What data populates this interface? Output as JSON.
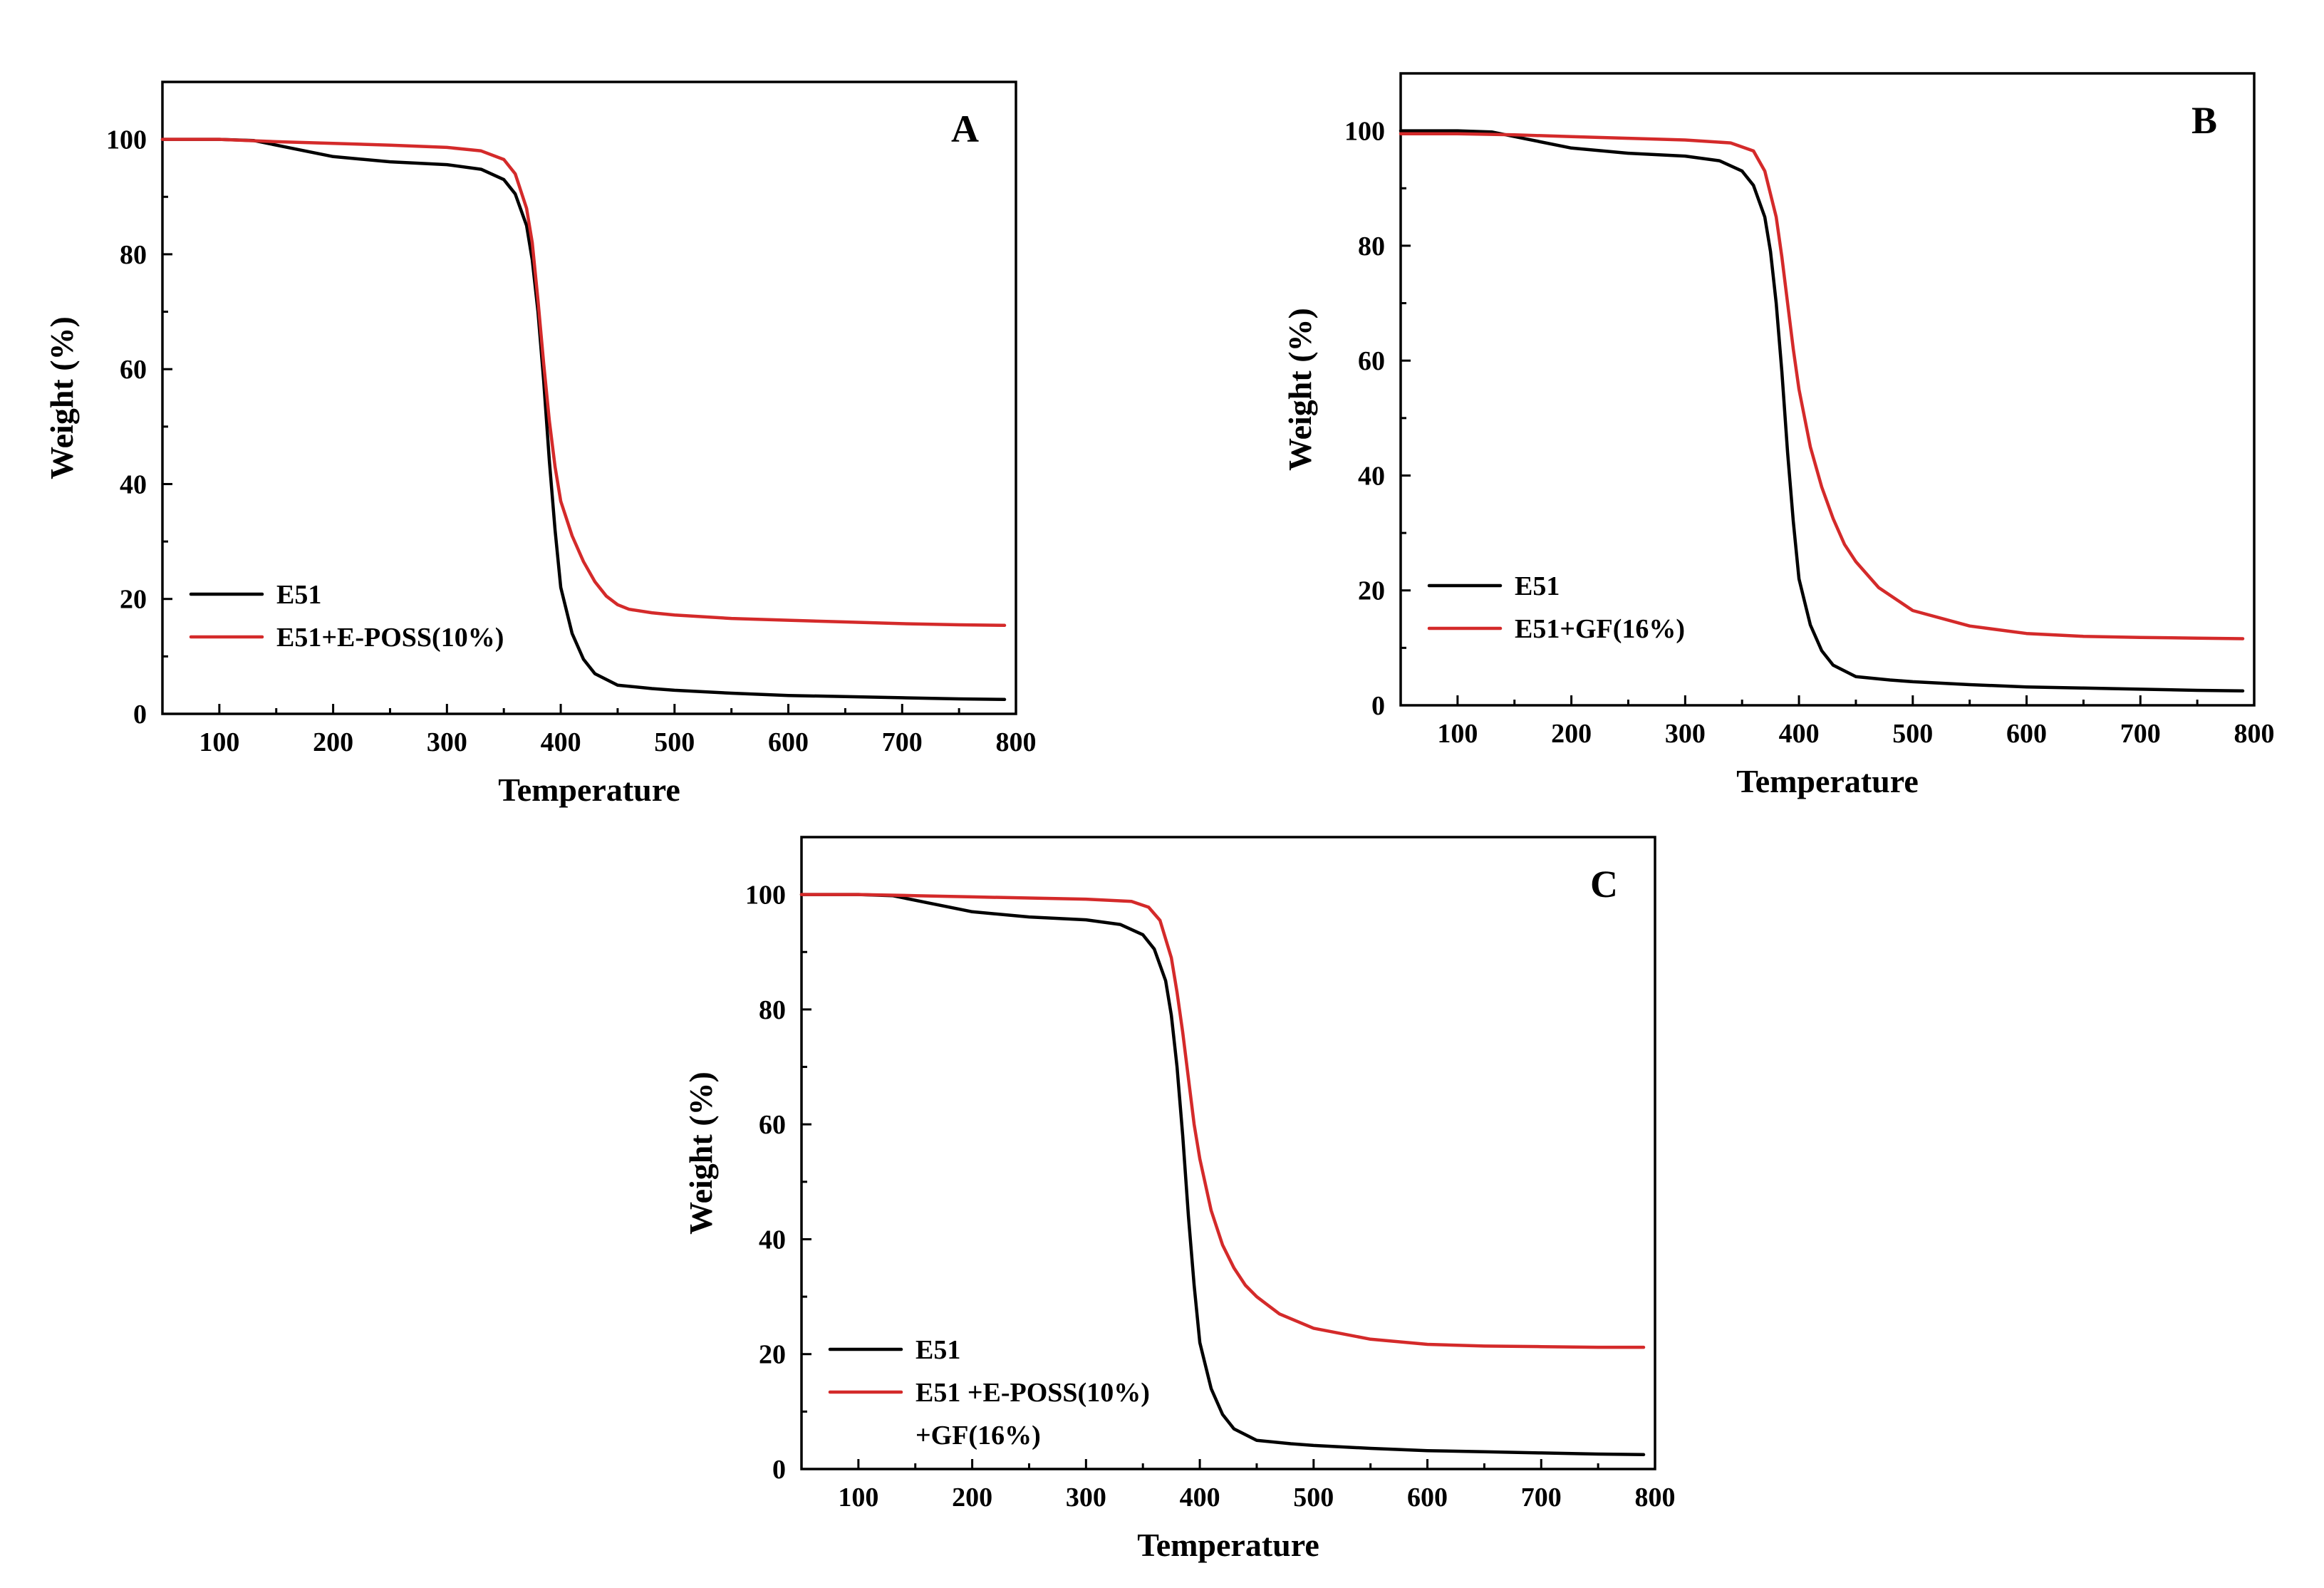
{
  "chart_data": [
    {
      "type": "line",
      "panel_label": "A",
      "xlabel": "Temperature",
      "ylabel": "Weight (%)",
      "xlim": [
        50,
        800
      ],
      "ylim": [
        0,
        110
      ],
      "xticks": [
        100,
        200,
        300,
        400,
        500,
        600,
        700,
        800
      ],
      "yticks": [
        0,
        20,
        40,
        60,
        80,
        100
      ],
      "legend_position": "bottom-left",
      "series": [
        {
          "name": "E51",
          "color": "#000000",
          "x": [
            50,
            100,
            130,
            160,
            200,
            250,
            300,
            330,
            350,
            360,
            370,
            375,
            380,
            385,
            390,
            395,
            400,
            410,
            420,
            430,
            450,
            480,
            500,
            550,
            600,
            650,
            700,
            750,
            790
          ],
          "y": [
            100,
            100,
            99.8,
            98.6,
            97,
            96.1,
            95.6,
            94.8,
            93,
            90.5,
            85,
            79,
            70,
            58,
            44,
            32,
            22,
            14,
            9.5,
            7,
            5,
            4.4,
            4.1,
            3.6,
            3.2,
            3,
            2.8,
            2.6,
            2.5
          ]
        },
        {
          "name": "E51+E-POSS(10%)",
          "color": "#d42a2a",
          "x": [
            50,
            100,
            150,
            200,
            250,
            300,
            330,
            350,
            360,
            370,
            375,
            380,
            385,
            390,
            395,
            400,
            410,
            420,
            430,
            440,
            450,
            460,
            480,
            500,
            550,
            600,
            650,
            700,
            750,
            790
          ],
          "y": [
            100,
            100,
            99.6,
            99.3,
            99,
            98.6,
            98,
            96.5,
            94,
            88,
            82,
            72,
            61,
            51,
            43,
            37,
            31,
            26.5,
            23,
            20.5,
            19,
            18.2,
            17.6,
            17.2,
            16.6,
            16.3,
            16,
            15.7,
            15.5,
            15.4
          ]
        }
      ]
    },
    {
      "type": "line",
      "panel_label": "B",
      "xlabel": "Temperature",
      "ylabel": "Weight (%)",
      "xlim": [
        50,
        800
      ],
      "ylim": [
        0,
        110
      ],
      "xticks": [
        100,
        200,
        300,
        400,
        500,
        600,
        700,
        800
      ],
      "yticks": [
        0,
        20,
        40,
        60,
        80,
        100
      ],
      "legend_position": "bottom-left",
      "series": [
        {
          "name": "E51",
          "color": "#000000",
          "x": [
            50,
            100,
            130,
            160,
            200,
            250,
            300,
            330,
            350,
            360,
            370,
            375,
            380,
            385,
            390,
            395,
            400,
            410,
            420,
            430,
            450,
            480,
            500,
            550,
            600,
            650,
            700,
            750,
            790
          ],
          "y": [
            100,
            100,
            99.8,
            98.6,
            97,
            96.1,
            95.6,
            94.8,
            93,
            90.5,
            85,
            79,
            70,
            58,
            44,
            32,
            22,
            14,
            9.5,
            7,
            5,
            4.4,
            4.1,
            3.6,
            3.2,
            3,
            2.8,
            2.6,
            2.5
          ]
        },
        {
          "name": "E51+GF(16%)",
          "color": "#d42a2a",
          "x": [
            50,
            100,
            150,
            200,
            250,
            300,
            340,
            360,
            370,
            380,
            385,
            390,
            395,
            400,
            410,
            420,
            430,
            440,
            450,
            470,
            500,
            550,
            600,
            650,
            700,
            750,
            790
          ],
          "y": [
            99.5,
            99.5,
            99.3,
            99,
            98.7,
            98.4,
            97.9,
            96.5,
            93,
            85,
            78,
            70,
            62,
            55,
            45,
            38,
            32.5,
            28,
            25,
            20.5,
            16.5,
            13.8,
            12.5,
            12,
            11.8,
            11.7,
            11.6
          ]
        }
      ]
    },
    {
      "type": "line",
      "panel_label": "C",
      "xlabel": "Temperature",
      "ylabel": "Weight (%)",
      "xlim": [
        50,
        800
      ],
      "ylim": [
        0,
        110
      ],
      "xticks": [
        100,
        200,
        300,
        400,
        500,
        600,
        700,
        800
      ],
      "yticks": [
        0,
        20,
        40,
        60,
        80,
        100
      ],
      "legend_position": "bottom-left",
      "series": [
        {
          "name": "E51",
          "color": "#000000",
          "x": [
            50,
            100,
            130,
            160,
            200,
            250,
            300,
            330,
            350,
            360,
            370,
            375,
            380,
            385,
            390,
            395,
            400,
            410,
            420,
            430,
            450,
            480,
            500,
            550,
            600,
            650,
            700,
            750,
            790
          ],
          "y": [
            100,
            100,
            99.8,
            98.6,
            97,
            96.1,
            95.6,
            94.8,
            93,
            90.5,
            85,
            79,
            70,
            58,
            44,
            32,
            22,
            14,
            9.5,
            7,
            5,
            4.4,
            4.1,
            3.6,
            3.2,
            3,
            2.8,
            2.6,
            2.5
          ]
        },
        {
          "name": "E51 +E-POSS(10%)\n+GF(16%)",
          "legend_lines": [
            "E51 +E-POSS(10%)",
            "+GF(16%)"
          ],
          "color": "#d42a2a",
          "x": [
            50,
            100,
            150,
            200,
            250,
            300,
            340,
            355,
            365,
            375,
            380,
            385,
            390,
            395,
            400,
            410,
            420,
            430,
            440,
            450,
            470,
            500,
            550,
            600,
            650,
            700,
            750,
            790
          ],
          "y": [
            100,
            100,
            99.8,
            99.6,
            99.4,
            99.2,
            98.8,
            97.8,
            95.5,
            89,
            83,
            76,
            68,
            60,
            54,
            45,
            39,
            35,
            32,
            30,
            27,
            24.5,
            22.6,
            21.7,
            21.4,
            21.3,
            21.2,
            21.2
          ]
        }
      ]
    }
  ]
}
